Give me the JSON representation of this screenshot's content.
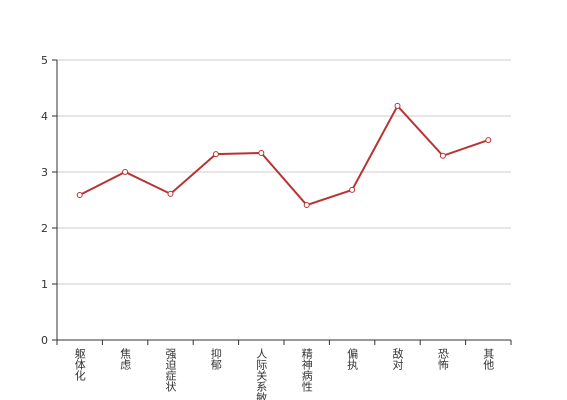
{
  "chart_data": {
    "type": "line",
    "categories": [
      "躯体化",
      "焦虑",
      "强迫症状",
      "抑郁",
      "人际关系敏感",
      "精神病性",
      "偏执",
      "敌对",
      "恐怖",
      "其他"
    ],
    "values": [
      2.59,
      3.0,
      2.61,
      3.32,
      3.34,
      2.41,
      2.68,
      4.18,
      3.29,
      3.57
    ],
    "color": "#b83333",
    "ylim": [
      0,
      5
    ],
    "yticks": [
      0,
      1,
      2,
      3,
      4,
      5
    ],
    "grid": true
  }
}
